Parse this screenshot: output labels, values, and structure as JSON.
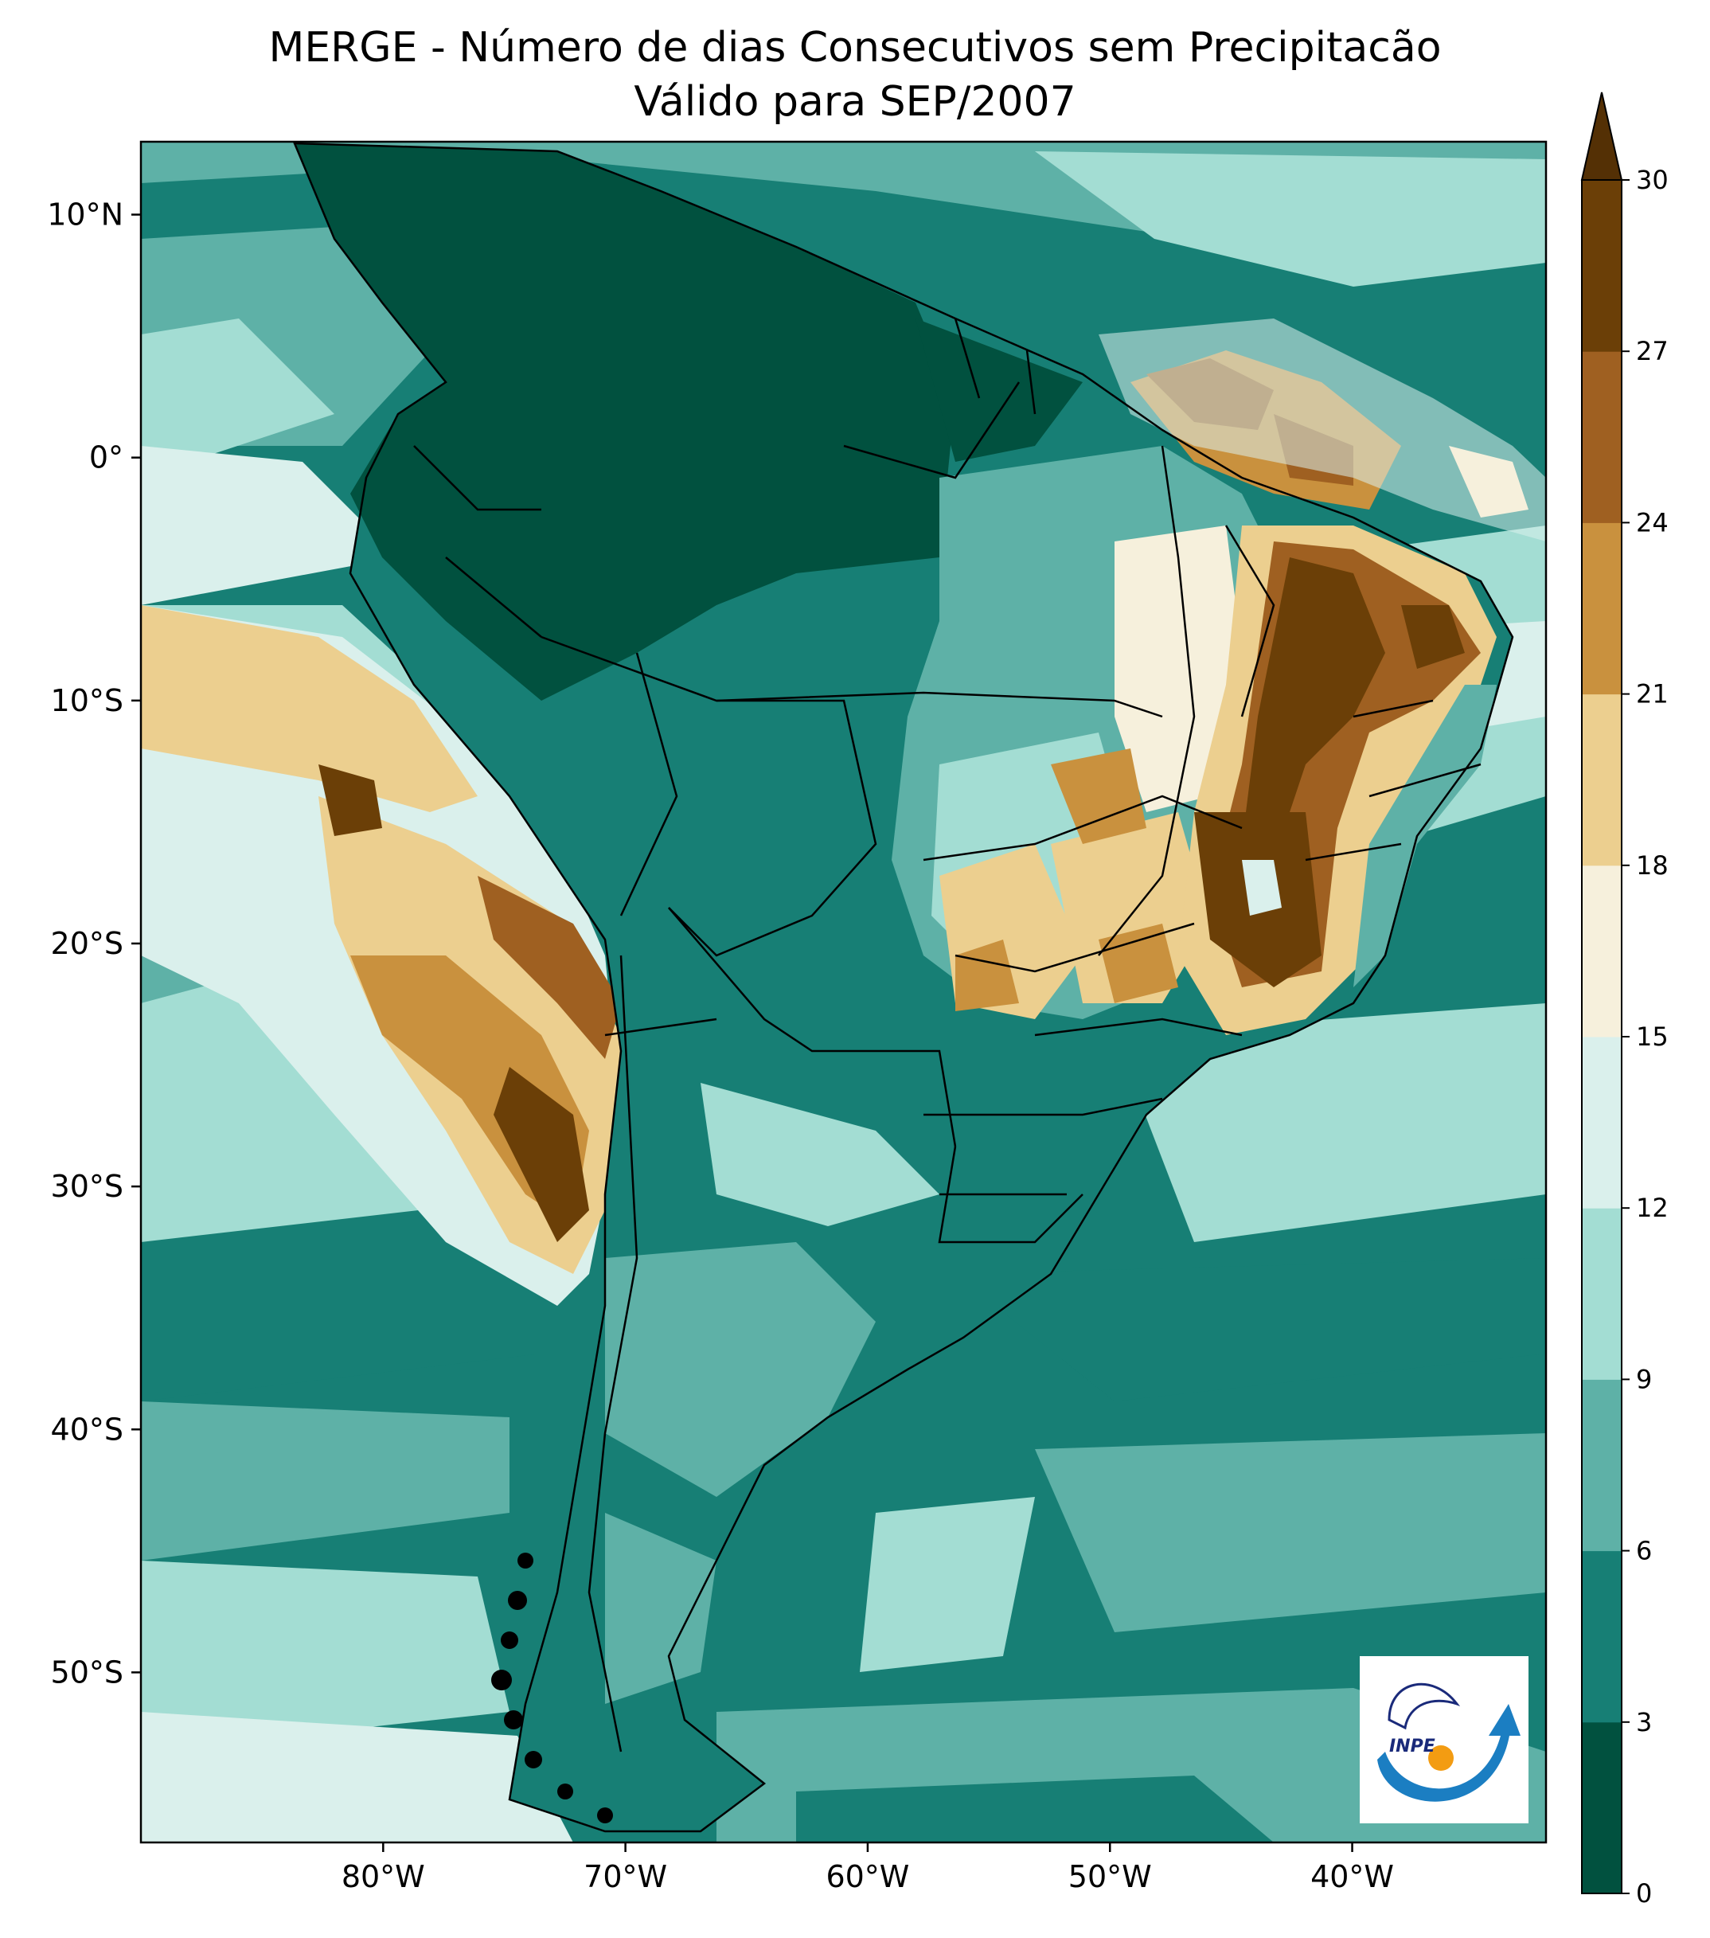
{
  "title": {
    "line1": "MERGE - Número de dias Consecutivos sem Precipitacão",
    "line2": "Válido para SEP/2007"
  },
  "map": {
    "lon_range": [
      -90,
      -32
    ],
    "lat_range": [
      -57,
      13
    ],
    "x_ticks": [
      {
        "lon": -80,
        "label": "80°W"
      },
      {
        "lon": -70,
        "label": "70°W"
      },
      {
        "lon": -60,
        "label": "60°W"
      },
      {
        "lon": -50,
        "label": "50°W"
      },
      {
        "lon": -40,
        "label": "40°W"
      }
    ],
    "y_ticks": [
      {
        "lat": 10,
        "label": "10°N"
      },
      {
        "lat": 0,
        "label": "0°"
      },
      {
        "lat": -10,
        "label": "10°S"
      },
      {
        "lat": -20,
        "label": "20°S"
      },
      {
        "lat": -30,
        "label": "30°S"
      },
      {
        "lat": -40,
        "label": "40°S"
      },
      {
        "lat": -50,
        "label": "50°S"
      }
    ]
  },
  "colorbar": {
    "levels": [
      0,
      3,
      6,
      9,
      12,
      15,
      18,
      21,
      24,
      27,
      30
    ],
    "labels": [
      "0",
      "3",
      "6",
      "9",
      "12",
      "15",
      "18",
      "21",
      "24",
      "27",
      "30"
    ],
    "colors": [
      "#01513f",
      "#177f75",
      "#5eb1a7",
      "#a3ddd3",
      "#daf0ec",
      "#f6f0dc",
      "#eccf8f",
      "#c9913e",
      "#9f6021",
      "#6b3f07"
    ],
    "extend_color": "#543005",
    "extend": "max"
  },
  "logo": {
    "text": "INPE"
  }
}
